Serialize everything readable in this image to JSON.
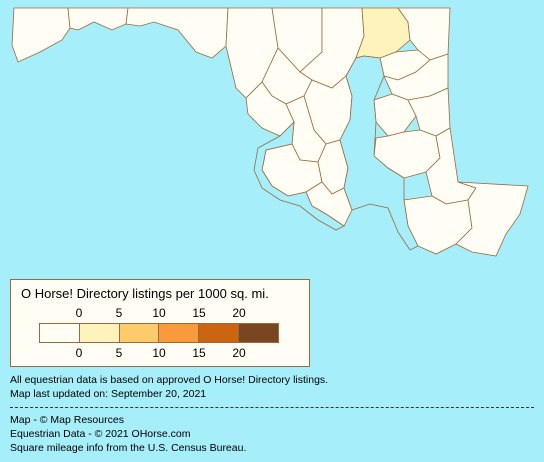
{
  "map": {
    "region": "Maryland",
    "default_fill": "#fffdf4",
    "highlight_fill": "#fff3bd",
    "border_color": "#9a6a3c",
    "water_color": "#a6eefa"
  },
  "legend": {
    "title": "O Horse! Directory listings per 1000 sq. mi.",
    "top_ticks": [
      "0",
      "5",
      "10",
      "15",
      "20"
    ],
    "bottom_ticks": [
      "0",
      "5",
      "10",
      "15",
      "20"
    ],
    "colors": [
      "#fffdf4",
      "#fff3bd",
      "#fdcb6c",
      "#f99a3c",
      "#cc6512",
      "#7a4521"
    ]
  },
  "notes": {
    "line1": "All equestrian data is based on approved O Horse! Directory listings.",
    "line2": "Map last updated on: September 20, 2021"
  },
  "credits": {
    "map": "Map - © Map Resources",
    "equestrian": "Equestrian Data - © 2021 OHorse.com",
    "mileage": "Square mileage info from the U.S. Census Bureau."
  }
}
